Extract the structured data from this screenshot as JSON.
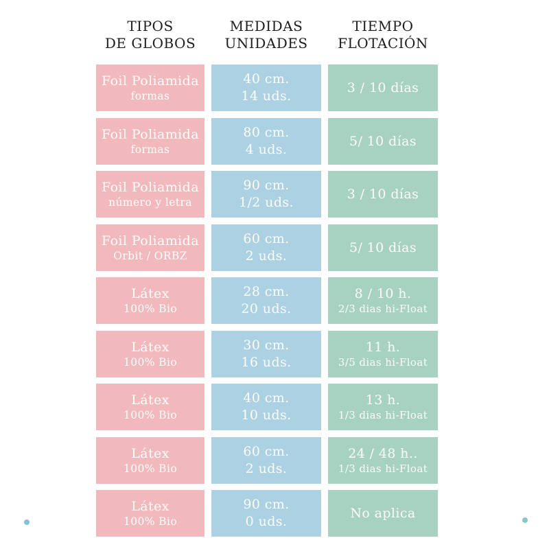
{
  "chart_data": {
    "type": "table",
    "title": "",
    "columns": [
      {
        "id": "tipos",
        "header": [
          "TIPOS",
          "DE GLOBOS"
        ],
        "color": "#f2b9bc"
      },
      {
        "id": "medidas",
        "header": [
          "MEDIDAS",
          "UNIDADES"
        ],
        "color": "#abd1e2"
      },
      {
        "id": "tiempo",
        "header": [
          "TIEMPO",
          "FLOTACIÓN"
        ],
        "color": "#a7d1c1"
      }
    ],
    "rows": [
      {
        "tipo": [
          "Foil Poliamida",
          "formas"
        ],
        "medida": [
          "40 cm.",
          "14 uds."
        ],
        "tiempo": [
          "3 / 10 días"
        ]
      },
      {
        "tipo": [
          "Foil Poliamida",
          "formas"
        ],
        "medida": [
          "80 cm.",
          "4 uds."
        ],
        "tiempo": [
          "5/ 10 días"
        ]
      },
      {
        "tipo": [
          "Foil Poliamida",
          "número y letra"
        ],
        "medida": [
          "90 cm.",
          "1/2 uds."
        ],
        "tiempo": [
          "3 / 10 días"
        ]
      },
      {
        "tipo": [
          "Foil Poliamida",
          "Orbit / ORBZ"
        ],
        "medida": [
          "60 cm.",
          "2 uds."
        ],
        "tiempo": [
          "5/ 10 días"
        ]
      },
      {
        "tipo": [
          "Látex",
          "100% Bio"
        ],
        "medida": [
          "28 cm.",
          "20 uds."
        ],
        "tiempo": [
          "8 / 10 h.",
          "2/3 dias hi-Float"
        ]
      },
      {
        "tipo": [
          "Látex",
          "100% Bio"
        ],
        "medida": [
          "30 cm.",
          "16 uds."
        ],
        "tiempo": [
          "11 h.",
          "3/5 dias hi-Float"
        ]
      },
      {
        "tipo": [
          "Látex",
          "100% Bio"
        ],
        "medida": [
          "40 cm.",
          "10 uds."
        ],
        "tiempo": [
          "13 h.",
          "1/3 dias hi-Float"
        ]
      },
      {
        "tipo": [
          "Látex",
          "100% Bio"
        ],
        "medida": [
          "60 cm.",
          "2 uds."
        ],
        "tiempo": [
          "24 / 48 h..",
          "1/3 dias hi-Float"
        ]
      },
      {
        "tipo": [
          "Látex",
          "100% Bio"
        ],
        "medida": [
          "90 cm.",
          "0 uds."
        ],
        "tiempo": [
          "No aplica"
        ]
      }
    ]
  },
  "decorations": {
    "dots": [
      {
        "name": "bottom-left-dot",
        "color": "#87bed8"
      },
      {
        "name": "bottom-right-dot",
        "color": "#84c9c3"
      }
    ]
  }
}
